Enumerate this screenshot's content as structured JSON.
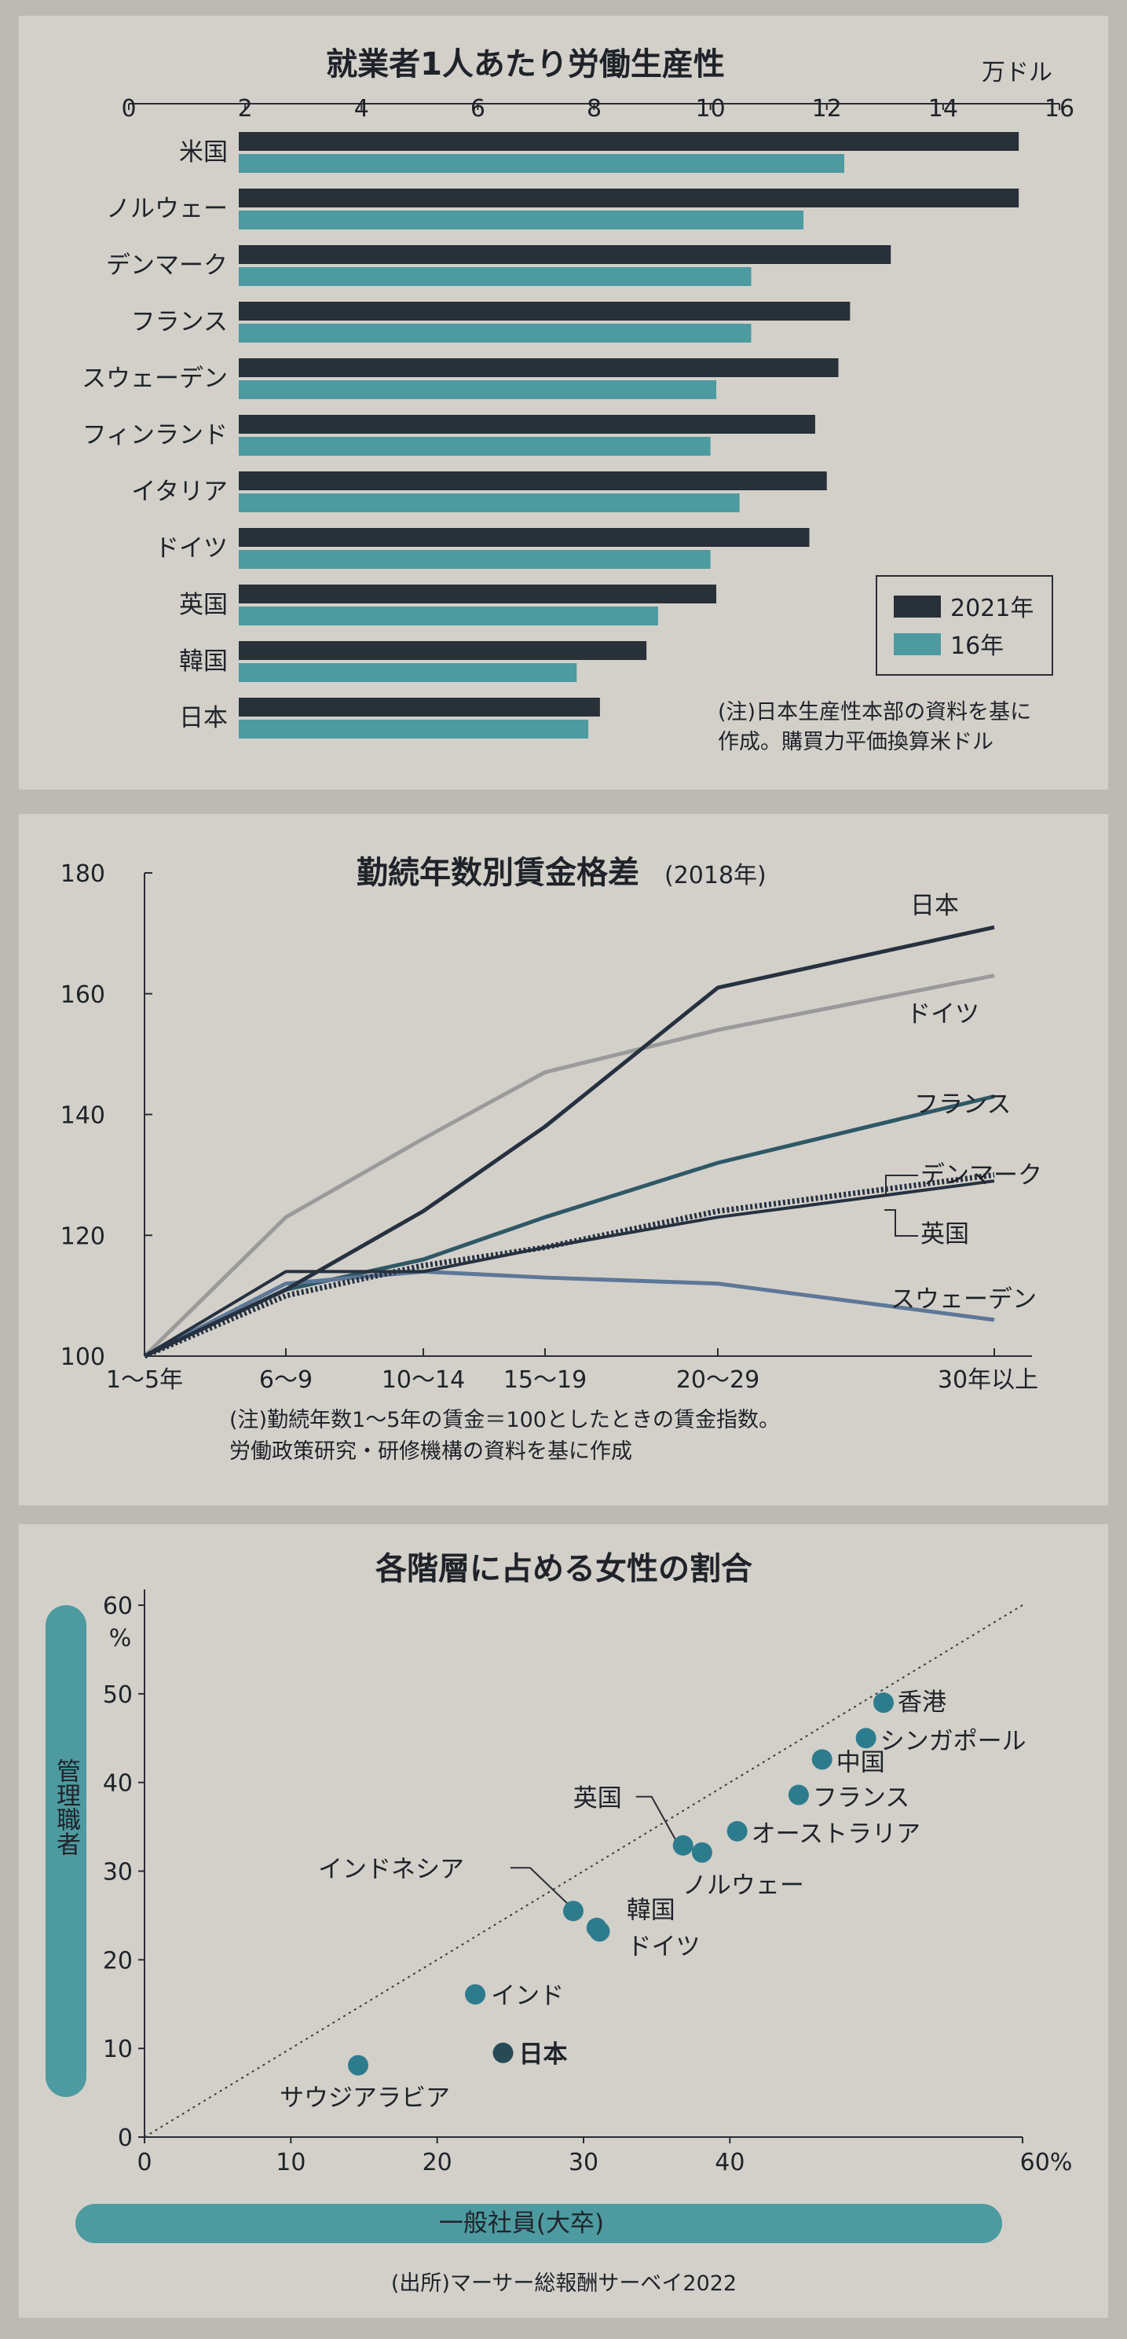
{
  "colors": {
    "dark": "#283038",
    "teal": "#4d9aa0",
    "gray": "#9a9a9a",
    "navy": "#263140",
    "steel": "#2f5866",
    "blue": "#5d7797",
    "dot": "#2d7c8e",
    "axis_band": "#4d9aa0"
  },
  "chart_data": [
    {
      "type": "bar",
      "title": "就業者1人あたり労働生産性",
      "unit": "万ドル",
      "xlim": [
        0,
        16
      ],
      "ticks": [
        "0",
        "2",
        "4",
        "6",
        "8",
        "10",
        "12",
        "14",
        "16"
      ],
      "categories": [
        "米国",
        "ノルウェー",
        "デンマーク",
        "フランス",
        "スウェーデン",
        "フィンランド",
        "イタリア",
        "ドイツ",
        "英国",
        "韓国",
        "日本"
      ],
      "series": [
        {
          "name": "2021年",
          "values": [
            15.3,
            15.3,
            13.1,
            12.4,
            12.2,
            11.8,
            12.0,
            11.7,
            10.1,
            8.9,
            8.1
          ]
        },
        {
          "name": "16年",
          "values": [
            12.3,
            11.6,
            10.7,
            10.7,
            10.1,
            10.0,
            10.5,
            10.0,
            9.1,
            7.7,
            7.9
          ]
        }
      ],
      "legend_position": "bottom-right",
      "note": [
        "(注)日本生産性本部の資料を基に",
        "作成。購買力平価換算米ドル"
      ]
    },
    {
      "type": "line",
      "title": "勤続年数別賃金格差",
      "subtitle": "(2018年)",
      "categories": [
        "1～5年",
        "6～9",
        "10～14",
        "15～19",
        "20～29",
        "30年以上"
      ],
      "ylim": [
        100,
        180
      ],
      "yticks": [
        "100",
        "120",
        "140",
        "160",
        "180"
      ],
      "series": [
        {
          "name": "日本",
          "values": [
            100,
            111,
            124,
            138,
            161,
            171
          ]
        },
        {
          "name": "ドイツ",
          "values": [
            100,
            123,
            136,
            147,
            154,
            163
          ]
        },
        {
          "name": "フランス",
          "values": [
            100,
            111,
            116,
            123,
            132,
            143
          ]
        },
        {
          "name": "デンマーク",
          "values": [
            100,
            110,
            115,
            118,
            124,
            130
          ]
        },
        {
          "name": "英国",
          "values": [
            100,
            114,
            114,
            118,
            123,
            129
          ]
        },
        {
          "name": "スウェーデン",
          "values": [
            100,
            112,
            114,
            113,
            112,
            106
          ]
        }
      ],
      "note": [
        "(注)勤続年数1～5年の賃金＝100としたときの賃金指数。",
        "労働政策研究・研修機構の資料を基に作成"
      ]
    },
    {
      "type": "scatter",
      "title": "各階層に占める女性の割合",
      "xlabel": "一般社員(大卒)",
      "ylabel": "管理職者",
      "xlim": [
        0,
        60
      ],
      "ylim": [
        0,
        60
      ],
      "xticks": [
        "0",
        "10",
        "20",
        "30",
        "40",
        "60%"
      ],
      "yticks": [
        "0",
        "10",
        "20",
        "30",
        "40",
        "50",
        "60"
      ],
      "yunit": "%",
      "points": [
        {
          "label": "香港",
          "x": 50.5,
          "y": 49.0
        },
        {
          "label": "シンガポール",
          "x": 49.3,
          "y": 45.0
        },
        {
          "label": "中国",
          "x": 46.3,
          "y": 42.6
        },
        {
          "label": "フランス",
          "x": 44.7,
          "y": 38.6
        },
        {
          "label": "オーストラリア",
          "x": 40.5,
          "y": 34.5
        },
        {
          "label": "英国",
          "x": 36.8,
          "y": 32.9
        },
        {
          "label": "ノルウェー",
          "x": 38.1,
          "y": 32.1
        },
        {
          "label": "インドネシア",
          "x": 29.3,
          "y": 25.5
        },
        {
          "label": "韓国",
          "x": 30.9,
          "y": 23.6
        },
        {
          "label": "ドイツ",
          "x": 31.1,
          "y": 23.2
        },
        {
          "label": "インド",
          "x": 22.6,
          "y": 16.1
        },
        {
          "label": "日本",
          "x": 24.5,
          "y": 9.5
        },
        {
          "label": "サウジアラビア",
          "x": 14.6,
          "y": 8.1
        }
      ],
      "source": "(出所)マーサー総報酬サーベイ2022"
    }
  ]
}
